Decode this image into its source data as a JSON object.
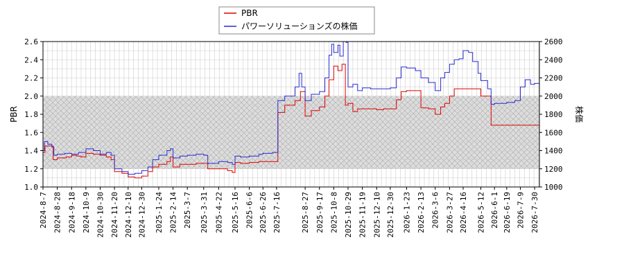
{
  "chart_data": {
    "type": "line",
    "legend": {
      "placement": "top-center",
      "entries": [
        {
          "name": "PBR",
          "color": "#dd0000"
        },
        {
          "name": "パワーソリューションズの株価",
          "color": "#2a2ad4"
        }
      ]
    },
    "ylabel_left": "PBR",
    "ylabel_right": "株価",
    "ylim_left": [
      1.0,
      2.6
    ],
    "ylim_right": [
      1000,
      2600
    ],
    "yticks_left": [
      "1.0",
      "1.2",
      "1.4",
      "1.6",
      "1.8",
      "2.0",
      "2.2",
      "2.4",
      "2.6"
    ],
    "yticks_right": [
      "1000",
      "1200",
      "1400",
      "1600",
      "1800",
      "2000",
      "2200",
      "2400",
      "2600"
    ],
    "xlim": [
      "2024-08-07",
      "2026-08-06"
    ],
    "xticks": [
      "2024-8-7",
      "2024-8-28",
      "2024-9-18",
      "2024-10-9",
      "2024-10-30",
      "2024-11-20",
      "2024-12-10",
      "2024-12-30",
      "2025-1-24",
      "2025-2-14",
      "2025-3-7",
      "2025-3-31",
      "2025-4-22",
      "2025-5-16",
      "2025-6-6",
      "2025-6-26",
      "2025-7-16",
      "2025-8-27",
      "2025-9-17",
      "2025-10-8",
      "2025-10-29",
      "2025-11-19",
      "2025-12-10",
      "2025-12-30",
      "2026-1-23",
      "2026-2-13",
      "2026-3-6",
      "2026-3-27",
      "2026-4-16",
      "2026-5-12",
      "2026-6-1",
      "2026-6-19",
      "2026-7-9",
      "2026-7-30"
    ],
    "grid": true,
    "shaded_band_left": [
      1.2,
      2.0
    ],
    "series": [
      {
        "name": "PBR",
        "axis": "left",
        "color": "#dd0000",
        "points": [
          [
            "2024-08-07",
            1.38
          ],
          [
            "2024-08-10",
            1.45
          ],
          [
            "2024-08-20",
            1.45
          ],
          [
            "2024-08-22",
            1.3
          ],
          [
            "2024-08-28",
            1.32
          ],
          [
            "2024-09-10",
            1.33
          ],
          [
            "2024-09-18",
            1.35
          ],
          [
            "2024-09-25",
            1.34
          ],
          [
            "2024-10-02",
            1.33
          ],
          [
            "2024-10-09",
            1.37
          ],
          [
            "2024-10-20",
            1.36
          ],
          [
            "2024-10-30",
            1.35
          ],
          [
            "2024-11-08",
            1.33
          ],
          [
            "2024-11-15",
            1.3
          ],
          [
            "2024-11-20",
            1.17
          ],
          [
            "2024-12-01",
            1.15
          ],
          [
            "2024-12-10",
            1.11
          ],
          [
            "2024-12-20",
            1.1
          ],
          [
            "2024-12-30",
            1.12
          ],
          [
            "2025-01-08",
            1.17
          ],
          [
            "2025-01-15",
            1.22
          ],
          [
            "2025-01-24",
            1.25
          ],
          [
            "2025-02-05",
            1.28
          ],
          [
            "2025-02-10",
            1.33
          ],
          [
            "2025-02-14",
            1.22
          ],
          [
            "2025-02-24",
            1.25
          ],
          [
            "2025-03-07",
            1.25
          ],
          [
            "2025-03-20",
            1.26
          ],
          [
            "2025-03-31",
            1.26
          ],
          [
            "2025-04-06",
            1.2
          ],
          [
            "2025-04-22",
            1.2
          ],
          [
            "2025-05-05",
            1.18
          ],
          [
            "2025-05-12",
            1.16
          ],
          [
            "2025-05-16",
            1.27
          ],
          [
            "2025-05-24",
            1.26
          ],
          [
            "2025-06-06",
            1.27
          ],
          [
            "2025-06-20",
            1.28
          ],
          [
            "2025-06-26",
            1.28
          ],
          [
            "2025-07-10",
            1.28
          ],
          [
            "2025-07-16",
            1.28
          ],
          [
            "2025-07-18",
            1.82
          ],
          [
            "2025-07-28",
            1.9
          ],
          [
            "2025-08-12",
            1.95
          ],
          [
            "2025-08-20",
            2.05
          ],
          [
            "2025-08-27",
            1.78
          ],
          [
            "2025-09-05",
            1.84
          ],
          [
            "2025-09-17",
            1.88
          ],
          [
            "2025-09-25",
            2.0
          ],
          [
            "2025-10-01",
            2.18
          ],
          [
            "2025-10-08",
            2.33
          ],
          [
            "2025-10-14",
            2.28
          ],
          [
            "2025-10-20",
            2.35
          ],
          [
            "2025-10-25",
            1.9
          ],
          [
            "2025-10-29",
            1.92
          ],
          [
            "2025-11-05",
            1.83
          ],
          [
            "2025-11-12",
            1.86
          ],
          [
            "2025-11-19",
            1.86
          ],
          [
            "2025-12-01",
            1.86
          ],
          [
            "2025-12-10",
            1.85
          ],
          [
            "2025-12-20",
            1.86
          ],
          [
            "2025-12-30",
            1.86
          ],
          [
            "2026-01-08",
            1.96
          ],
          [
            "2026-01-15",
            2.05
          ],
          [
            "2026-01-23",
            2.06
          ],
          [
            "2026-02-05",
            2.06
          ],
          [
            "2026-02-13",
            1.87
          ],
          [
            "2026-02-24",
            1.86
          ],
          [
            "2026-03-06",
            1.8
          ],
          [
            "2026-03-14",
            1.88
          ],
          [
            "2026-03-20",
            1.92
          ],
          [
            "2026-03-27",
            2.0
          ],
          [
            "2026-04-03",
            2.08
          ],
          [
            "2026-04-16",
            2.08
          ],
          [
            "2026-04-30",
            2.08
          ],
          [
            "2026-05-08",
            2.08
          ],
          [
            "2026-05-12",
            2.0
          ],
          [
            "2026-05-22",
            2.0
          ],
          [
            "2026-05-27",
            1.68
          ],
          [
            "2026-06-01",
            1.68
          ],
          [
            "2026-06-19",
            1.68
          ],
          [
            "2026-07-09",
            1.68
          ],
          [
            "2026-07-30",
            1.68
          ],
          [
            "2026-08-06",
            1.68
          ]
        ]
      },
      {
        "name": "パワーソリューションズの株価",
        "axis": "right",
        "color": "#2a2ad4",
        "points": [
          [
            "2024-08-07",
            1400
          ],
          [
            "2024-08-09",
            1500
          ],
          [
            "2024-08-14",
            1470
          ],
          [
            "2024-08-20",
            1440
          ],
          [
            "2024-08-23",
            1350
          ],
          [
            "2024-08-28",
            1360
          ],
          [
            "2024-09-08",
            1370
          ],
          [
            "2024-09-18",
            1360
          ],
          [
            "2024-09-28",
            1380
          ],
          [
            "2024-10-09",
            1420
          ],
          [
            "2024-10-20",
            1400
          ],
          [
            "2024-10-30",
            1360
          ],
          [
            "2024-11-08",
            1380
          ],
          [
            "2024-11-15",
            1350
          ],
          [
            "2024-11-20",
            1200
          ],
          [
            "2024-12-01",
            1170
          ],
          [
            "2024-12-10",
            1140
          ],
          [
            "2024-12-20",
            1150
          ],
          [
            "2024-12-30",
            1180
          ],
          [
            "2025-01-08",
            1220
          ],
          [
            "2025-01-15",
            1300
          ],
          [
            "2025-01-24",
            1350
          ],
          [
            "2025-02-05",
            1400
          ],
          [
            "2025-02-10",
            1420
          ],
          [
            "2025-02-14",
            1320
          ],
          [
            "2025-02-24",
            1340
          ],
          [
            "2025-03-07",
            1350
          ],
          [
            "2025-03-20",
            1360
          ],
          [
            "2025-03-31",
            1350
          ],
          [
            "2025-04-06",
            1260
          ],
          [
            "2025-04-22",
            1280
          ],
          [
            "2025-05-05",
            1270
          ],
          [
            "2025-05-12",
            1250
          ],
          [
            "2025-05-16",
            1340
          ],
          [
            "2025-05-24",
            1330
          ],
          [
            "2025-06-06",
            1340
          ],
          [
            "2025-06-20",
            1360
          ],
          [
            "2025-06-26",
            1370
          ],
          [
            "2025-07-10",
            1380
          ],
          [
            "2025-07-16",
            1380
          ],
          [
            "2025-07-18",
            1950
          ],
          [
            "2025-07-28",
            2000
          ],
          [
            "2025-08-12",
            2100
          ],
          [
            "2025-08-18",
            2250
          ],
          [
            "2025-08-22",
            2100
          ],
          [
            "2025-08-27",
            1950
          ],
          [
            "2025-09-05",
            2020
          ],
          [
            "2025-09-17",
            2050
          ],
          [
            "2025-09-25",
            2200
          ],
          [
            "2025-10-01",
            2450
          ],
          [
            "2025-10-05",
            2570
          ],
          [
            "2025-10-08",
            2480
          ],
          [
            "2025-10-14",
            2560
          ],
          [
            "2025-10-17",
            2440
          ],
          [
            "2025-10-22",
            2600
          ],
          [
            "2025-10-26",
            2590
          ],
          [
            "2025-10-29",
            2100
          ],
          [
            "2025-11-05",
            2130
          ],
          [
            "2025-11-12",
            2060
          ],
          [
            "2025-11-19",
            2090
          ],
          [
            "2025-12-01",
            2080
          ],
          [
            "2025-12-10",
            2080
          ],
          [
            "2025-12-20",
            2080
          ],
          [
            "2025-12-30",
            2090
          ],
          [
            "2026-01-08",
            2200
          ],
          [
            "2026-01-15",
            2320
          ],
          [
            "2026-01-23",
            2310
          ],
          [
            "2026-02-05",
            2280
          ],
          [
            "2026-02-13",
            2200
          ],
          [
            "2026-02-24",
            2150
          ],
          [
            "2026-03-06",
            2060
          ],
          [
            "2026-03-14",
            2200
          ],
          [
            "2026-03-20",
            2260
          ],
          [
            "2026-03-27",
            2350
          ],
          [
            "2026-04-03",
            2400
          ],
          [
            "2026-04-10",
            2410
          ],
          [
            "2026-04-16",
            2500
          ],
          [
            "2026-04-24",
            2480
          ],
          [
            "2026-04-30",
            2380
          ],
          [
            "2026-05-08",
            2250
          ],
          [
            "2026-05-12",
            2170
          ],
          [
            "2026-05-22",
            2080
          ],
          [
            "2026-05-27",
            1910
          ],
          [
            "2026-06-01",
            1920
          ],
          [
            "2026-06-19",
            1930
          ],
          [
            "2026-07-01",
            1950
          ],
          [
            "2026-07-09",
            2100
          ],
          [
            "2026-07-16",
            2180
          ],
          [
            "2026-07-24",
            2130
          ],
          [
            "2026-07-30",
            2140
          ],
          [
            "2026-08-06",
            2150
          ]
        ]
      }
    ]
  }
}
